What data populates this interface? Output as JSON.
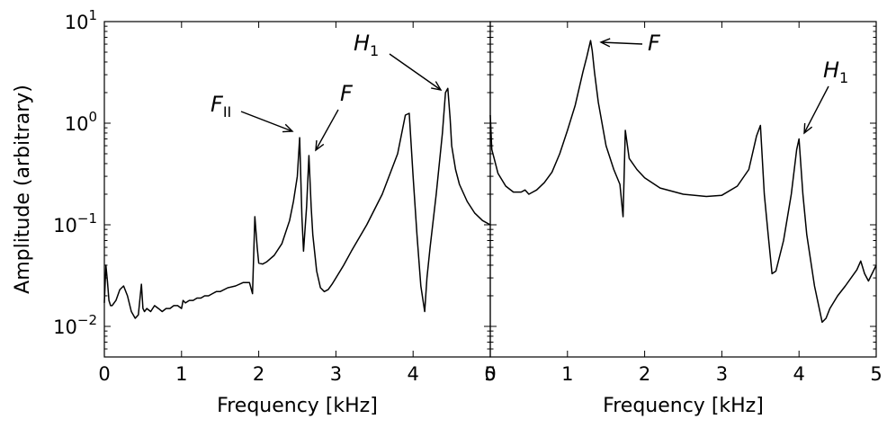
{
  "chart_data": [
    {
      "type": "line",
      "panel": "left",
      "xlabel": "Frequency [kHz]",
      "ylabel": "Amplitude (arbitrary)",
      "xlim": [
        0,
        5
      ],
      "ylim": [
        0.005,
        10
      ],
      "yscale": "log",
      "grid": false,
      "x_ticks": [
        0,
        1,
        2,
        3,
        4,
        5
      ],
      "x_tick_labels": [
        "0",
        "1",
        "2",
        "3",
        "4",
        "5"
      ],
      "y_ticks": [
        0.01,
        0.1,
        1,
        10
      ],
      "y_tick_labels": [
        {
          "base": "10",
          "exp": "−2"
        },
        {
          "base": "10",
          "exp": "−1"
        },
        {
          "base": "10",
          "exp": "0"
        },
        {
          "base": "10",
          "exp": "1"
        }
      ],
      "annotations": [
        {
          "text": "F",
          "sub": "II",
          "x": 2.55,
          "y": 0.75
        },
        {
          "text": "F",
          "sub": "",
          "x": 2.7,
          "y": 0.48
        },
        {
          "text": "H",
          "sub": "1",
          "x": 4.45,
          "y": 2.1
        }
      ],
      "series": [
        {
          "x": [
            0.0,
            0.02,
            0.04,
            0.06,
            0.08,
            0.1,
            0.15,
            0.2,
            0.25,
            0.3,
            0.35,
            0.4,
            0.44,
            0.48,
            0.5,
            0.52,
            0.55,
            0.6,
            0.65,
            0.7,
            0.75,
            0.8,
            0.85,
            0.9,
            0.95,
            1.0,
            1.02,
            1.05,
            1.1,
            1.15,
            1.2,
            1.25,
            1.3,
            1.35,
            1.4,
            1.45,
            1.5,
            1.6,
            1.7,
            1.8,
            1.88,
            1.92,
            1.95,
            1.98,
            2.0,
            2.05,
            2.1,
            2.2,
            2.3,
            2.4,
            2.45,
            2.5,
            2.53,
            2.56,
            2.58,
            2.62,
            2.65,
            2.68,
            2.7,
            2.75,
            2.8,
            2.85,
            2.9,
            2.95,
            3.0,
            3.1,
            3.2,
            3.4,
            3.6,
            3.8,
            3.9,
            3.95,
            4.0,
            4.05,
            4.1,
            4.15,
            4.18,
            4.22,
            4.3,
            4.38,
            4.42,
            4.45,
            4.48,
            4.5,
            4.55,
            4.6,
            4.7,
            4.8,
            4.9,
            5.0
          ],
          "y": [
            0.017,
            0.04,
            0.028,
            0.018,
            0.016,
            0.016,
            0.018,
            0.023,
            0.025,
            0.02,
            0.014,
            0.012,
            0.013,
            0.026,
            0.015,
            0.014,
            0.015,
            0.014,
            0.016,
            0.015,
            0.014,
            0.015,
            0.015,
            0.016,
            0.016,
            0.015,
            0.018,
            0.017,
            0.018,
            0.018,
            0.019,
            0.019,
            0.02,
            0.02,
            0.021,
            0.022,
            0.022,
            0.024,
            0.025,
            0.027,
            0.027,
            0.021,
            0.12,
            0.06,
            0.042,
            0.041,
            0.043,
            0.05,
            0.065,
            0.11,
            0.17,
            0.3,
            0.72,
            0.12,
            0.055,
            0.15,
            0.48,
            0.15,
            0.08,
            0.035,
            0.024,
            0.022,
            0.023,
            0.026,
            0.03,
            0.04,
            0.055,
            0.1,
            0.2,
            0.5,
            1.2,
            1.25,
            0.3,
            0.08,
            0.025,
            0.014,
            0.03,
            0.06,
            0.2,
            0.8,
            2.0,
            2.2,
            1.1,
            0.6,
            0.35,
            0.25,
            0.17,
            0.13,
            0.11,
            0.1
          ]
        }
      ]
    },
    {
      "type": "line",
      "panel": "right",
      "xlabel": "Frequency [kHz]",
      "xlim": [
        0,
        5
      ],
      "ylim": [
        0.005,
        10
      ],
      "yscale": "log",
      "grid": false,
      "x_ticks": [
        0,
        1,
        2,
        3,
        4,
        5
      ],
      "x_tick_labels": [
        "0",
        "1",
        "2",
        "3",
        "4",
        "5"
      ],
      "annotations": [
        {
          "text": "F",
          "sub": "",
          "x": 1.32,
          "y": 6.5
        },
        {
          "text": "H",
          "sub": "1",
          "x": 4.0,
          "y": 0.7
        }
      ],
      "series": [
        {
          "x": [
            0.0,
            0.02,
            0.05,
            0.1,
            0.2,
            0.3,
            0.4,
            0.45,
            0.5,
            0.55,
            0.6,
            0.7,
            0.8,
            0.9,
            1.0,
            1.1,
            1.2,
            1.25,
            1.3,
            1.32,
            1.35,
            1.4,
            1.5,
            1.6,
            1.68,
            1.72,
            1.75,
            1.8,
            1.9,
            2.0,
            2.2,
            2.5,
            2.8,
            3.0,
            3.2,
            3.35,
            3.45,
            3.5,
            3.55,
            3.6,
            3.65,
            3.7,
            3.8,
            3.9,
            3.97,
            4.0,
            4.05,
            4.1,
            4.2,
            4.3,
            4.35,
            4.4,
            4.5,
            4.6,
            4.7,
            4.75,
            4.8,
            4.85,
            4.9,
            5.0
          ],
          "y": [
            1.2,
            0.55,
            0.45,
            0.32,
            0.24,
            0.21,
            0.21,
            0.22,
            0.2,
            0.21,
            0.22,
            0.26,
            0.33,
            0.5,
            0.85,
            1.5,
            3.2,
            4.5,
            6.5,
            5.2,
            3.2,
            1.6,
            0.6,
            0.35,
            0.25,
            0.12,
            0.85,
            0.45,
            0.35,
            0.29,
            0.23,
            0.2,
            0.19,
            0.195,
            0.24,
            0.35,
            0.75,
            0.95,
            0.2,
            0.08,
            0.033,
            0.035,
            0.07,
            0.2,
            0.55,
            0.7,
            0.2,
            0.08,
            0.025,
            0.011,
            0.012,
            0.015,
            0.02,
            0.025,
            0.032,
            0.036,
            0.044,
            0.033,
            0.028,
            0.04
          ]
        }
      ]
    }
  ]
}
